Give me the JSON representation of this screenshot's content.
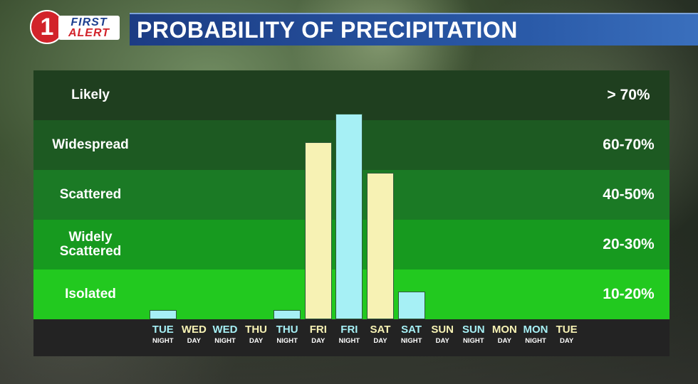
{
  "logo": {
    "numeral": "1",
    "line1": "FIRST",
    "line2": "ALERT"
  },
  "title": "PROBABILITY OF PRECIPITATION",
  "colors": {
    "night_bar": "#a6f0f5",
    "day_bar": "#f7f2b4",
    "day_label": "#f7f2b4",
    "night_label": "#a6f0f5",
    "bands": [
      "#1f3f1f",
      "#1d5a22",
      "#1b7a25",
      "#179a1f",
      "#22c91f"
    ]
  },
  "chart_data": {
    "type": "bar",
    "title": "PROBABILITY OF PRECIPITATION",
    "ylim": [
      0,
      80
    ],
    "bands": [
      {
        "label": "Likely",
        "range": "> 70%"
      },
      {
        "label": "Widespread",
        "range": "60-70%"
      },
      {
        "label": "Scattered",
        "range": "40-50%"
      },
      {
        "label": "Widely Scattered",
        "range": "20-30%"
      },
      {
        "label": "Isolated",
        "range": "10-20%"
      }
    ],
    "categories": [
      {
        "day": "TUE",
        "period": "NIGHT",
        "value": 3
      },
      {
        "day": "WED",
        "period": "DAY",
        "value": 0
      },
      {
        "day": "WED",
        "period": "NIGHT",
        "value": 0
      },
      {
        "day": "THU",
        "period": "DAY",
        "value": 0
      },
      {
        "day": "THU",
        "period": "NIGHT",
        "value": 3
      },
      {
        "day": "FRI",
        "period": "DAY",
        "value": 57
      },
      {
        "day": "FRI",
        "period": "NIGHT",
        "value": 66
      },
      {
        "day": "SAT",
        "period": "DAY",
        "value": 47
      },
      {
        "day": "SAT",
        "period": "NIGHT",
        "value": 9
      },
      {
        "day": "SUN",
        "period": "DAY",
        "value": 0
      },
      {
        "day": "SUN",
        "period": "NIGHT",
        "value": 0
      },
      {
        "day": "MON",
        "period": "DAY",
        "value": 0
      },
      {
        "day": "MON",
        "period": "NIGHT",
        "value": 0
      },
      {
        "day": "TUE",
        "period": "DAY",
        "value": 0
      }
    ]
  }
}
